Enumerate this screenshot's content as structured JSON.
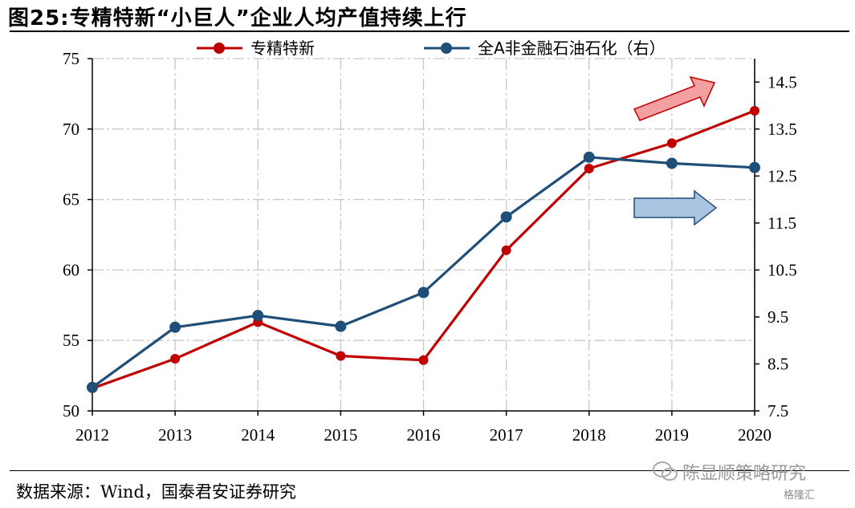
{
  "header": {
    "title": "图25:专精特新“小巨人”企业人均产值持续上行"
  },
  "footer": {
    "source": "数据来源：Wind，国泰君安证券研究",
    "watermark": "陈显顺策略研究",
    "watermark2": "格隆汇"
  },
  "colors": {
    "series_red": "#C00000",
    "series_blue": "#1F4E79",
    "arrow_red_fill": "#F4A0A0",
    "arrow_blue_fill": "#A9C4E0",
    "grid": "#C8C8C8"
  },
  "chart_data": {
    "type": "line",
    "x": [
      "2012",
      "2013",
      "2014",
      "2015",
      "2016",
      "2017",
      "2018",
      "2019",
      "2020"
    ],
    "series": [
      {
        "name": "专精特新",
        "axis": "left",
        "color": "#C00000",
        "values": [
          51.6,
          53.7,
          56.3,
          53.9,
          53.6,
          61.4,
          67.2,
          69.0,
          71.3
        ]
      },
      {
        "name": "全A非金融石油石化（右）",
        "axis": "right",
        "color": "#1F4E79",
        "values": [
          8.0,
          9.28,
          9.53,
          9.3,
          10.02,
          11.63,
          12.9,
          12.77,
          12.68
        ]
      }
    ],
    "y_left": {
      "lim": [
        50,
        75
      ],
      "ticks": [
        50,
        55,
        60,
        65,
        70,
        75
      ]
    },
    "y_right": {
      "lim": [
        7.5,
        15.0
      ],
      "ticks": [
        7.5,
        8.5,
        9.5,
        10.5,
        11.5,
        12.5,
        13.5,
        14.5
      ]
    },
    "grid": true,
    "legend": "top",
    "annotations": [
      {
        "type": "arrow",
        "direction": "up-right",
        "color": "red"
      },
      {
        "type": "arrow",
        "direction": "right",
        "color": "blue"
      }
    ]
  }
}
